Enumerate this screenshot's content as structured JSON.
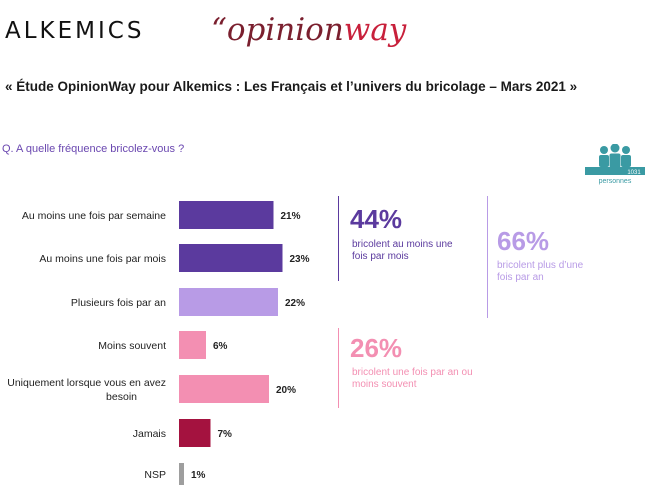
{
  "header": {
    "alkemics_logo": "ALKEMICS",
    "opinionway_logo_prefix": "“opinion",
    "opinionway_logo_suffix": "way",
    "study_title": "« Étude OpinionWay pour Alkemics : Les Français et l’univers du bricolage – Mars 2021 »"
  },
  "question": "Q. A quelle fréquence bricolez-vous ?",
  "base": {
    "count": "1031",
    "label": "personnes"
  },
  "chart_data": {
    "type": "bar",
    "orientation": "horizontal",
    "title": "Q. A quelle fréquence bricolez-vous ?",
    "categories": [
      "Au moins une fois par semaine",
      "Au moins une fois par mois",
      "Plusieurs fois par an",
      "Moins souvent",
      "Uniquement lorsque vous en avez besoin",
      "Jamais",
      "NSP"
    ],
    "values": [
      21,
      23,
      22,
      6,
      20,
      7,
      1
    ],
    "value_labels": [
      "21%",
      "23%",
      "22%",
      "6%",
      "20%",
      "7%",
      "1%"
    ],
    "colors": [
      "#5b3a9e",
      "#5b3a9e",
      "#b89be6",
      "#f38fb2",
      "#f38fb2",
      "#a4123f",
      "#9e9e9e"
    ],
    "xlim": [
      0,
      100
    ]
  },
  "summaries": [
    {
      "pct": "44%",
      "text": "bricolent au moins une fois par mois",
      "color": "#5b3a9e"
    },
    {
      "pct": "66%",
      "text": "bricolent plus d’une fois par an",
      "color": "#b89be6"
    },
    {
      "pct": "26%",
      "text": "bricolent une fois par an ou moins souvent",
      "color": "#f38fb2"
    }
  ]
}
